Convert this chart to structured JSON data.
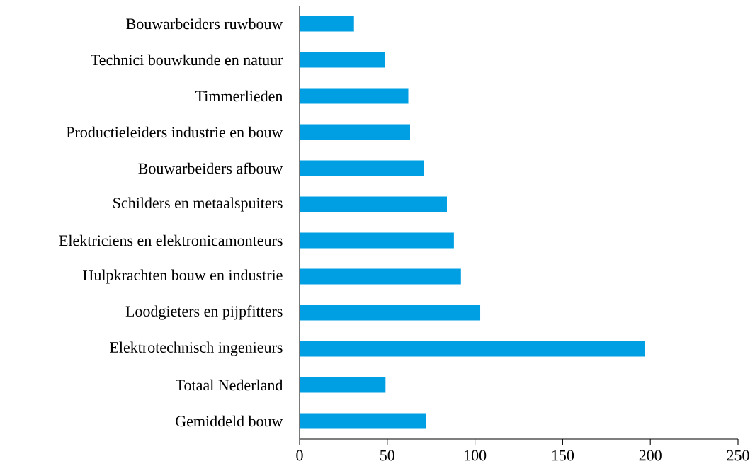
{
  "chart_data": {
    "type": "bar",
    "orientation": "horizontal",
    "categories": [
      "Bouwarbeiders ruwbouw",
      "Technici bouwkunde en natuur",
      "Timmerlieden",
      "Productieleiders industrie en bouw",
      "Bouwarbeiders afbouw",
      "Schilders en metaalspuiters",
      "Elektriciens en elektronicamonteurs",
      "Hulpkrachten bouw en industrie",
      "Loodgieters en pijpfitters",
      "Elektrotechnisch ingenieurs",
      "Totaal Nederland",
      "Gemiddeld bouw"
    ],
    "values": [
      31,
      48.5,
      62,
      63,
      71,
      84,
      88,
      92,
      103,
      197,
      49,
      72
    ],
    "color": "#009fe3",
    "xlim": [
      0,
      250
    ],
    "xticks": [
      0,
      50,
      100,
      150,
      200,
      250
    ]
  }
}
